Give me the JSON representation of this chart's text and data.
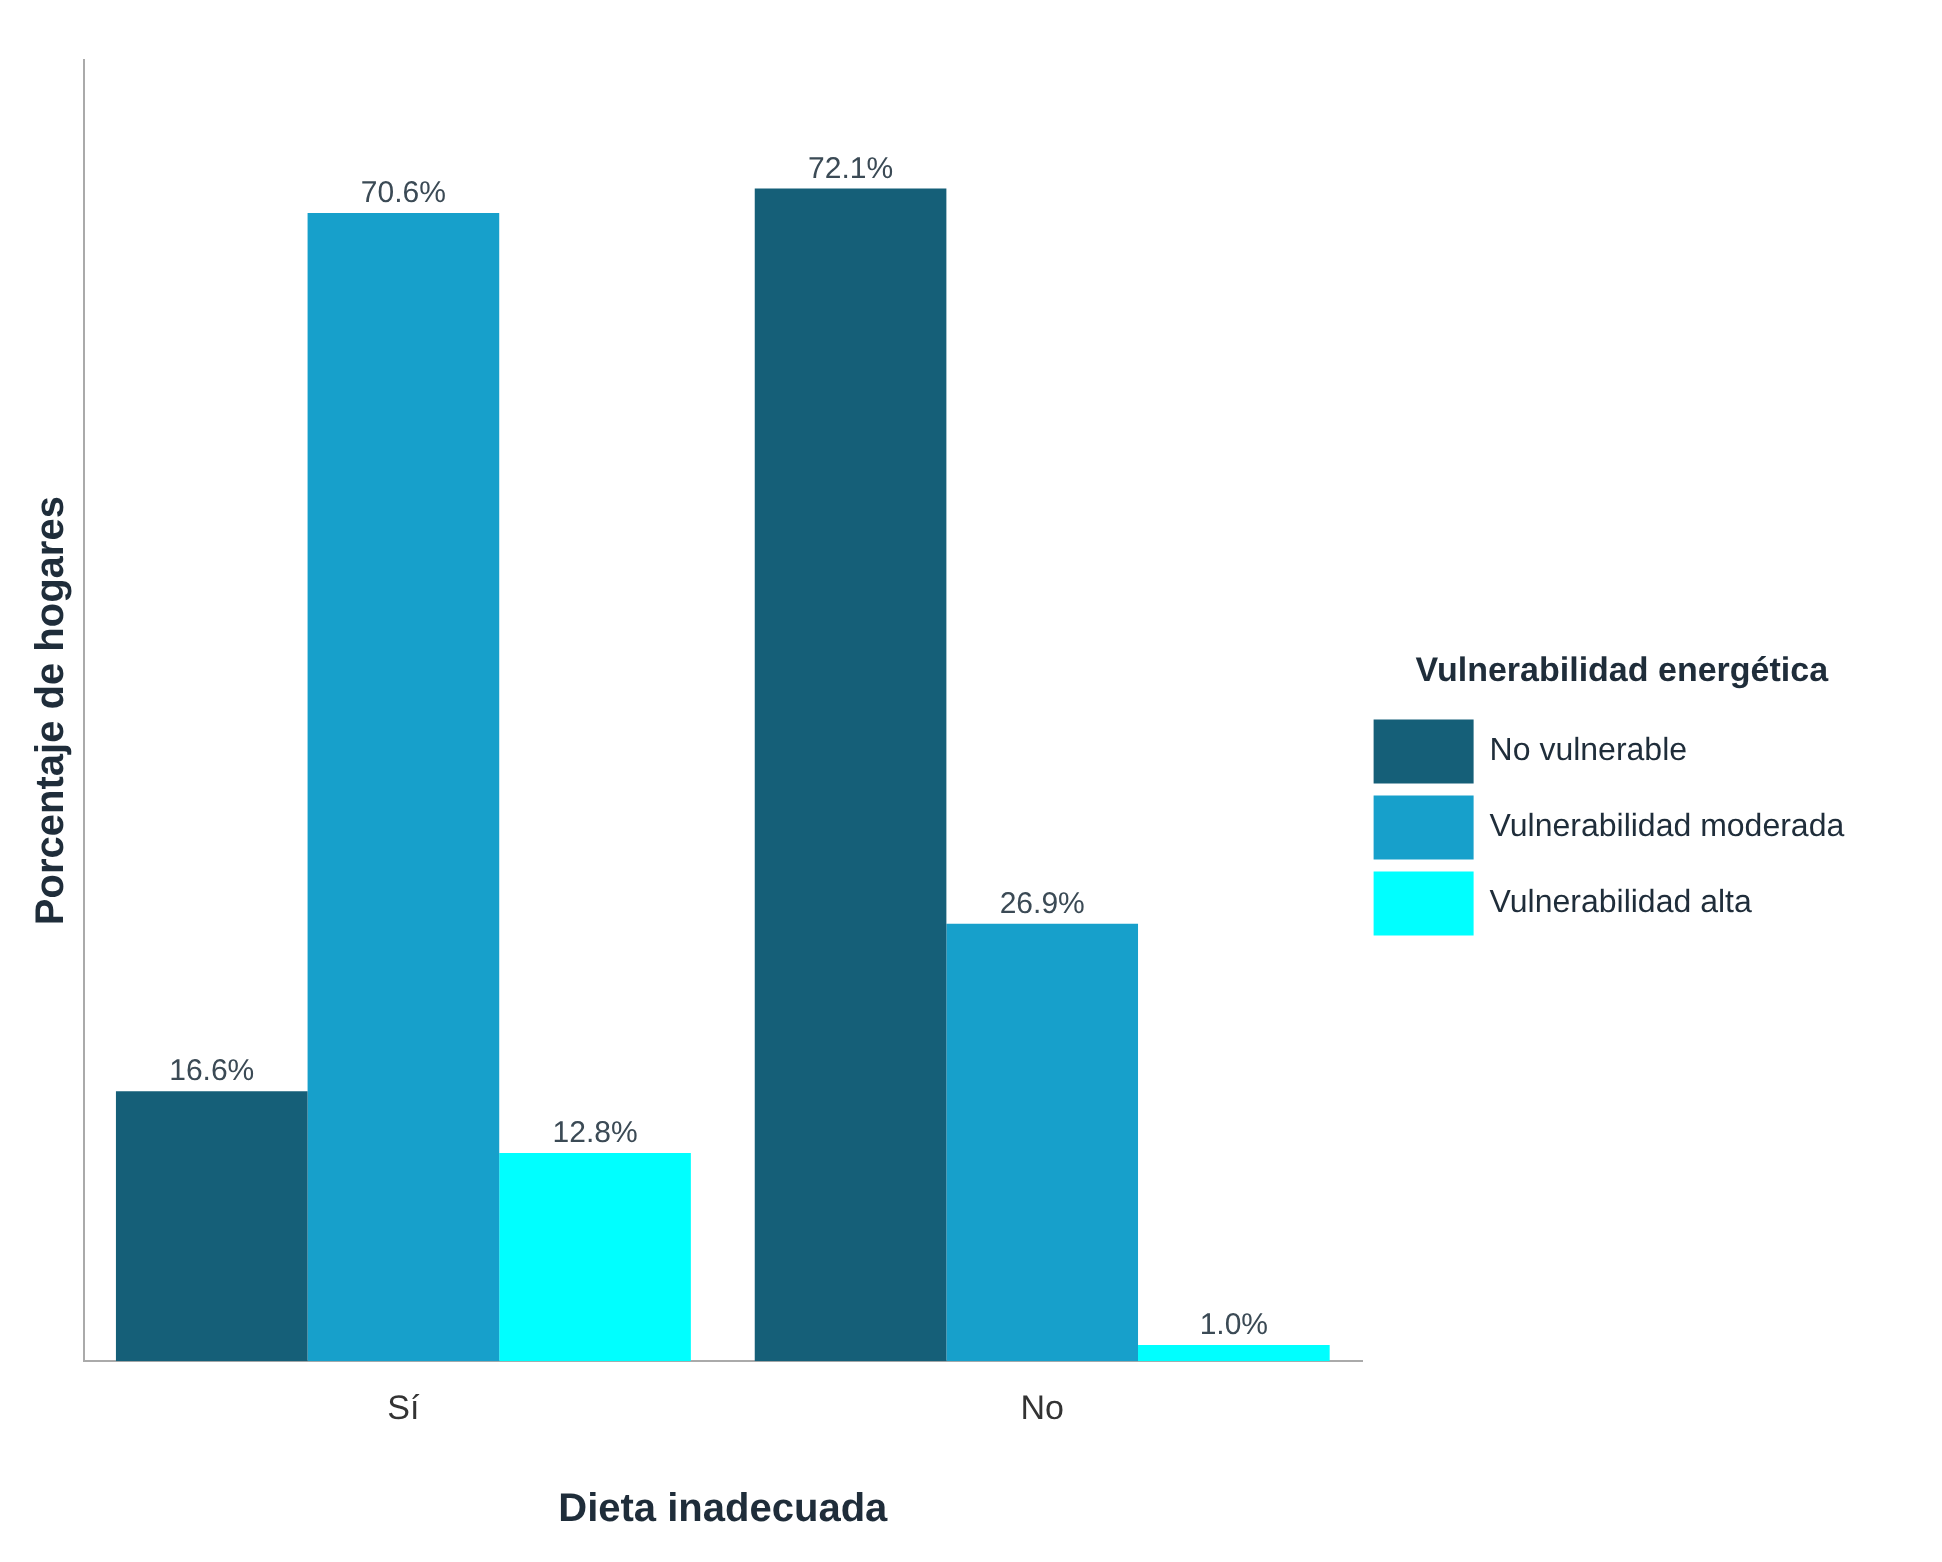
{
  "chart_data": {
    "type": "bar",
    "xlabel": "Dieta inadecuada",
    "ylabel": "Porcentaje de hogares",
    "legend_title": "Vulnerabilidad energética",
    "legend": "right",
    "grid": false,
    "tick_labels": "x",
    "categories": [
      "Sí",
      "No"
    ],
    "series": [
      {
        "name": "No vulnerable",
        "color": "#155f78",
        "values": [
          16.6,
          72.1
        ],
        "value_labels": [
          "16.6%",
          "72.1%"
        ]
      },
      {
        "name": "Vulnerabilidad moderada",
        "color": "#17a0cb",
        "values": [
          70.6,
          26.9
        ],
        "value_labels": [
          "70.6%",
          "26.9%"
        ]
      },
      {
        "name": "Vulnerabilidad alta",
        "color": "#00ffff",
        "values": [
          12.8,
          1.0
        ],
        "value_labels": [
          "12.8%",
          "1.0%"
        ]
      }
    ]
  }
}
